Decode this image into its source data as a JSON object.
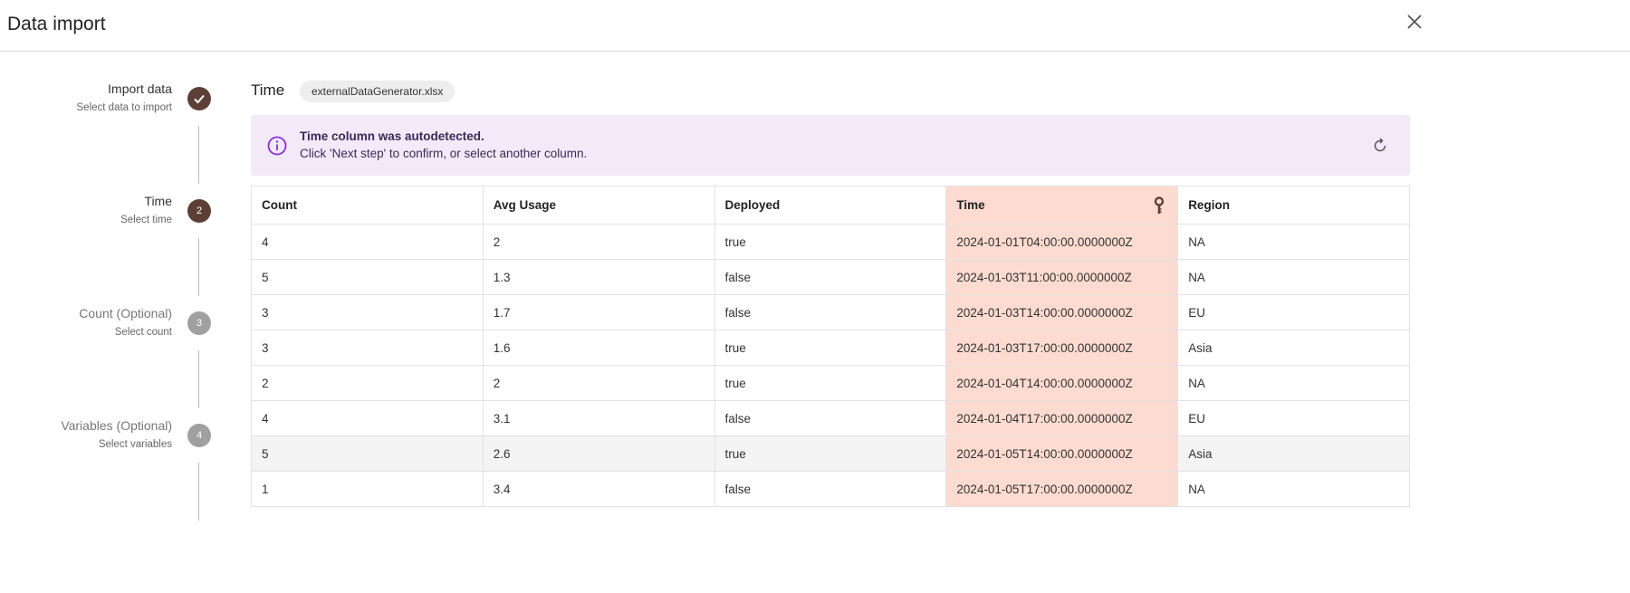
{
  "dialog": {
    "title": "Data import",
    "close_icon": "close-icon"
  },
  "steps": [
    {
      "label": "Import data",
      "sub": "Select data to import",
      "status": "completed",
      "marker": "check"
    },
    {
      "label": "Time",
      "sub": "Select time",
      "status": "active",
      "marker": "2"
    },
    {
      "label": "Count (Optional)",
      "sub": "Select count",
      "status": "pending",
      "marker": "3"
    },
    {
      "label": "Variables (Optional)",
      "sub": "Select variables",
      "status": "pending",
      "marker": "4"
    }
  ],
  "content": {
    "title": "Time",
    "file_chip": "externalDataGenerator.xlsx"
  },
  "banner": {
    "title": "Time column was autodetected.",
    "message": "Click 'Next step' to confirm, or select another column.",
    "icon": "info-icon",
    "action_icon": "reset-icon"
  },
  "table": {
    "columns": [
      "Count",
      "Avg Usage",
      "Deployed",
      "Time",
      "Region"
    ],
    "key_column": "Time",
    "rows": [
      [
        "4",
        "2",
        "true",
        "2024-01-01T04:00:00.0000000Z",
        "NA"
      ],
      [
        "5",
        "1.3",
        "false",
        "2024-01-03T11:00:00.0000000Z",
        "NA"
      ],
      [
        "3",
        "1.7",
        "false",
        "2024-01-03T14:00:00.0000000Z",
        "EU"
      ],
      [
        "3",
        "1.6",
        "true",
        "2024-01-03T17:00:00.0000000Z",
        "Asia"
      ],
      [
        "2",
        "2",
        "true",
        "2024-01-04T14:00:00.0000000Z",
        "NA"
      ],
      [
        "4",
        "3.1",
        "false",
        "2024-01-04T17:00:00.0000000Z",
        "EU"
      ],
      [
        "5",
        "2.6",
        "true",
        "2024-01-05T14:00:00.0000000Z",
        "Asia"
      ],
      [
        "1",
        "3.4",
        "false",
        "2024-01-05T17:00:00.0000000Z",
        "NA"
      ]
    ]
  },
  "colors": {
    "step_done": "#5c4037",
    "step_pending": "#a0a0a0",
    "banner_bg": "#f2eaf9",
    "info": "#8a2be2",
    "time_col": "#fddbd0"
  }
}
